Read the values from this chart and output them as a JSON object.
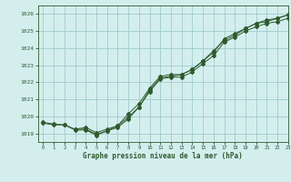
{
  "xlabel": "Graphe pression niveau de la mer (hPa)",
  "bg_color": "#d4eeee",
  "grid_color": "#a0cccc",
  "line_color": "#2d5a2d",
  "xlim": [
    -0.5,
    23
  ],
  "ylim": [
    1018.5,
    1026.5
  ],
  "yticks": [
    1019,
    1020,
    1021,
    1022,
    1023,
    1024,
    1025,
    1026
  ],
  "xticks": [
    0,
    1,
    2,
    3,
    4,
    5,
    6,
    7,
    8,
    9,
    10,
    11,
    12,
    13,
    14,
    15,
    16,
    17,
    18,
    19,
    20,
    21,
    22,
    23
  ],
  "series1": {
    "x": [
      0,
      1,
      2,
      3,
      4,
      5,
      6,
      7,
      8,
      9,
      10,
      11,
      12,
      13,
      14,
      15,
      16,
      17,
      18,
      19,
      20,
      21,
      22,
      23
    ],
    "y": [
      1019.6,
      1019.5,
      1019.5,
      1019.2,
      1019.2,
      1018.9,
      1019.15,
      1019.35,
      1019.85,
      1020.55,
      1021.45,
      1022.2,
      1022.3,
      1022.3,
      1022.6,
      1023.1,
      1023.55,
      1024.35,
      1024.65,
      1025.0,
      1025.25,
      1025.45,
      1025.55,
      1025.75
    ]
  },
  "series2": {
    "x": [
      0,
      1,
      2,
      3,
      4,
      5,
      6,
      7,
      8,
      9,
      10,
      11,
      12,
      13,
      14,
      15,
      16,
      17,
      18,
      19,
      20,
      21,
      22,
      23
    ],
    "y": [
      1019.65,
      1019.55,
      1019.5,
      1019.25,
      1019.35,
      1019.05,
      1019.25,
      1019.45,
      1020.15,
      1020.75,
      1021.65,
      1022.35,
      1022.45,
      1022.45,
      1022.75,
      1023.25,
      1023.75,
      1024.55,
      1024.85,
      1025.15,
      1025.45,
      1025.65,
      1025.75,
      1025.95
    ]
  },
  "series3": {
    "x": [
      3,
      4,
      5,
      6,
      7,
      8,
      9,
      10,
      11,
      12,
      13,
      14,
      15,
      16,
      17,
      18,
      19,
      20,
      21,
      22,
      23
    ],
    "y": [
      1019.25,
      1019.25,
      1018.95,
      1019.15,
      1019.45,
      1019.95,
      1020.55,
      1021.55,
      1022.25,
      1022.35,
      1022.45,
      1022.75,
      1023.25,
      1023.85,
      1024.45,
      1024.75,
      1025.15,
      1025.45,
      1025.55,
      1025.75,
      1025.95
    ]
  }
}
